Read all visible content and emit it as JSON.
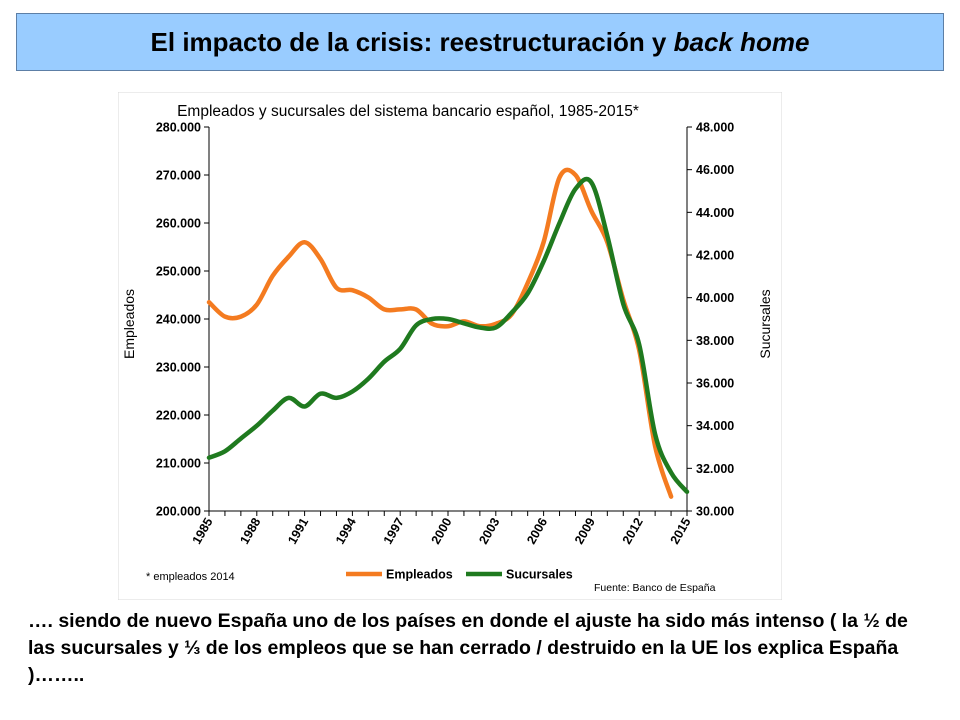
{
  "slide": {
    "title_main": "El impacto de la crisis: reestructuración y ",
    "title_italic": "back home",
    "body_text": "…. siendo de nuevo España uno de los países en donde el ajuste ha sido más intenso ( la ½ de las sucursales y ⅓ de los empleos que se han cerrado / destruido en la UE los explica España )…….."
  },
  "chart_data": {
    "type": "line",
    "title": "Empleados y sucursales del sistema bancario español, 1985-2015*",
    "ylabel_left": "Empleados",
    "ylabel_right": "Sucursales",
    "xlim": [
      1985,
      2015
    ],
    "ylim_left": [
      200000,
      280000
    ],
    "ylim_right": [
      30000,
      48000
    ],
    "x_ticks": [
      "1985",
      "1988",
      "1991",
      "1994",
      "1997",
      "2000",
      "2003",
      "2006",
      "2009",
      "2012",
      "2015"
    ],
    "y_ticks_left": [
      "200.000",
      "210.000",
      "220.000",
      "230.000",
      "240.000",
      "250.000",
      "260.000",
      "270.000",
      "280.000"
    ],
    "y_ticks_right": [
      "30.000",
      "32.000",
      "34.000",
      "36.000",
      "38.000",
      "40.000",
      "42.000",
      "44.000",
      "46.000",
      "48.000"
    ],
    "grid": false,
    "legend_position": "bottom",
    "footnote": "* empleados 2014",
    "source": "Fuente: Banco de España",
    "colors": {
      "Empleados": "#f47b20",
      "Sucursales": "#1f7a1f"
    },
    "series": [
      {
        "name": "Empleados",
        "axis": "left",
        "x": [
          1985,
          1986,
          1987,
          1988,
          1989,
          1990,
          1991,
          1992,
          1993,
          1994,
          1995,
          1996,
          1997,
          1998,
          1999,
          2000,
          2001,
          2002,
          2003,
          2004,
          2005,
          2006,
          2007,
          2008,
          2009,
          2010,
          2011,
          2012,
          2013,
          2014
        ],
        "values": [
          243500,
          240500,
          240500,
          243000,
          249000,
          253000,
          256000,
          252500,
          246500,
          246000,
          244500,
          242000,
          242000,
          242000,
          239000,
          238500,
          239500,
          238500,
          239000,
          241000,
          247500,
          256000,
          269500,
          270000,
          262500,
          256000,
          244000,
          233500,
          213500,
          203000
        ]
      },
      {
        "name": "Sucursales",
        "axis": "right",
        "x": [
          1985,
          1986,
          1987,
          1988,
          1989,
          1990,
          1991,
          1992,
          1993,
          1994,
          1995,
          1996,
          1997,
          1998,
          1999,
          2000,
          2001,
          2002,
          2003,
          2004,
          2005,
          2006,
          2007,
          2008,
          2009,
          2010,
          2011,
          2012,
          2013,
          2014,
          2015
        ],
        "values": [
          32500,
          32800,
          33400,
          34000,
          34700,
          35300,
          34900,
          35500,
          35300,
          35600,
          36200,
          37000,
          37600,
          38700,
          39000,
          39000,
          38800,
          38600,
          38600,
          39300,
          40200,
          41700,
          43500,
          45100,
          45400,
          42900,
          39700,
          37800,
          33600,
          31800,
          30900
        ]
      }
    ]
  }
}
